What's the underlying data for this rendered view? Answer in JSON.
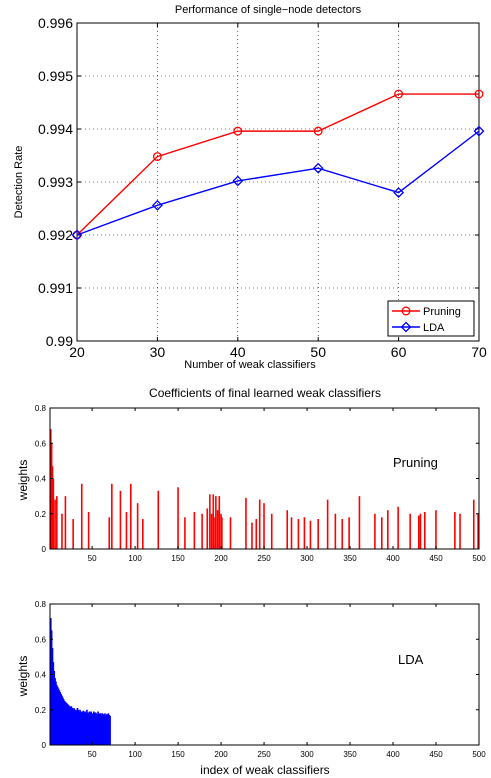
{
  "chart_data": [
    {
      "type": "line",
      "title": "Performance of single−node detectors",
      "xlabel": "Number of weak classifiers",
      "ylabel": "Detection Rate",
      "xlim": [
        20,
        70
      ],
      "ylim": [
        0.99,
        0.996
      ],
      "xticks": [
        "20",
        "30",
        "40",
        "50",
        "60",
        "70"
      ],
      "yticks": [
        "0.99",
        "0.991",
        "0.992",
        "0.993",
        "0.994",
        "0.995",
        "0.996"
      ],
      "grid": "dotted",
      "legend_position": "bottom-right",
      "x": [
        20,
        30,
        40,
        50,
        60,
        70
      ],
      "series": [
        {
          "name": "Pruning",
          "color": "#ff0000",
          "marker": "circle",
          "values": [
            0.992,
            0.99348,
            0.99396,
            0.99396,
            0.99466,
            0.99466
          ]
        },
        {
          "name": "LDA",
          "color": "#0000ff",
          "marker": "diamond",
          "values": [
            0.992,
            0.99256,
            0.99302,
            0.99326,
            0.9928,
            0.99396
          ]
        }
      ]
    },
    {
      "type": "bar",
      "title": "Coefficients of final learned weak classifiers",
      "ylabel": "weights",
      "annotation": "Pruning",
      "color": "#ff0000",
      "xlim": [
        1,
        500
      ],
      "ylim": [
        0,
        0.8
      ],
      "xticks": [
        "50",
        "100",
        "150",
        "200",
        "250",
        "300",
        "350",
        "400",
        "450",
        "500"
      ],
      "yticks": [
        "0",
        "0.2",
        "0.4",
        "0.6",
        "0.8"
      ],
      "x": [
        1,
        2,
        3,
        4,
        6,
        8,
        14,
        18,
        27,
        37,
        45,
        69,
        72,
        82,
        89,
        94,
        102,
        108,
        126,
        149,
        157,
        168,
        177,
        183,
        186,
        188,
        190,
        192,
        193,
        195,
        197,
        199,
        200,
        210,
        228,
        235,
        240,
        244,
        249,
        258,
        276,
        281,
        289,
        296,
        303,
        312,
        323,
        332,
        340,
        348,
        360,
        378,
        386,
        393,
        405,
        419,
        429,
        431,
        436,
        449,
        471,
        477,
        493,
        498
      ],
      "values": [
        0.68,
        0.6,
        0.47,
        0.4,
        0.28,
        0.3,
        0.2,
        0.3,
        0.17,
        0.37,
        0.21,
        0.18,
        0.37,
        0.33,
        0.21,
        0.37,
        0.26,
        0.17,
        0.33,
        0.35,
        0.18,
        0.21,
        0.2,
        0.23,
        0.31,
        0.2,
        0.31,
        0.18,
        0.3,
        0.22,
        0.3,
        0.2,
        0.18,
        0.18,
        0.29,
        0.15,
        0.17,
        0.28,
        0.26,
        0.2,
        0.22,
        0.18,
        0.17,
        0.18,
        0.16,
        0.17,
        0.28,
        0.2,
        0.17,
        0.18,
        0.3,
        0.2,
        0.18,
        0.22,
        0.24,
        0.2,
        0.19,
        0.2,
        0.21,
        0.22,
        0.21,
        0.2,
        0.28,
        0.2
      ]
    },
    {
      "type": "bar",
      "ylabel": "weights",
      "xlabel": "index of weak classifiers",
      "annotation": "LDA",
      "color": "#0000ff",
      "xlim": [
        1,
        500
      ],
      "ylim": [
        0,
        0.8
      ],
      "xticks": [
        "50",
        "100",
        "150",
        "200",
        "250",
        "300",
        "350",
        "400",
        "450",
        "500"
      ],
      "yticks": [
        "0",
        "0.2",
        "0.4",
        "0.6",
        "0.8"
      ],
      "x": [
        1,
        2,
        3,
        4,
        5,
        6,
        7,
        8,
        9,
        10,
        11,
        12,
        13,
        14,
        15,
        16,
        17,
        18,
        19,
        20,
        21,
        22,
        23,
        24,
        25,
        26,
        27,
        28,
        29,
        30,
        31,
        32,
        33,
        34,
        35,
        36,
        37,
        38,
        39,
        40,
        41,
        42,
        43,
        44,
        45,
        46,
        47,
        48,
        49,
        50,
        51,
        52,
        53,
        54,
        55,
        56,
        57,
        58,
        59,
        60,
        61,
        62,
        63,
        64,
        65,
        66,
        67,
        68,
        69,
        70
      ],
      "values": [
        0.72,
        0.65,
        0.55,
        0.47,
        0.42,
        0.38,
        0.36,
        0.34,
        0.33,
        0.32,
        0.31,
        0.3,
        0.29,
        0.28,
        0.27,
        0.26,
        0.25,
        0.245,
        0.24,
        0.235,
        0.23,
        0.225,
        0.22,
        0.215,
        0.22,
        0.21,
        0.205,
        0.21,
        0.2,
        0.2,
        0.195,
        0.21,
        0.2,
        0.19,
        0.2,
        0.19,
        0.185,
        0.19,
        0.195,
        0.185,
        0.19,
        0.18,
        0.2,
        0.185,
        0.18,
        0.19,
        0.185,
        0.19,
        0.18,
        0.175,
        0.19,
        0.18,
        0.185,
        0.18,
        0.175,
        0.19,
        0.18,
        0.175,
        0.18,
        0.17,
        0.18,
        0.175,
        0.17,
        0.18,
        0.165,
        0.175,
        0.17,
        0.18,
        0.17,
        0.165
      ]
    }
  ]
}
